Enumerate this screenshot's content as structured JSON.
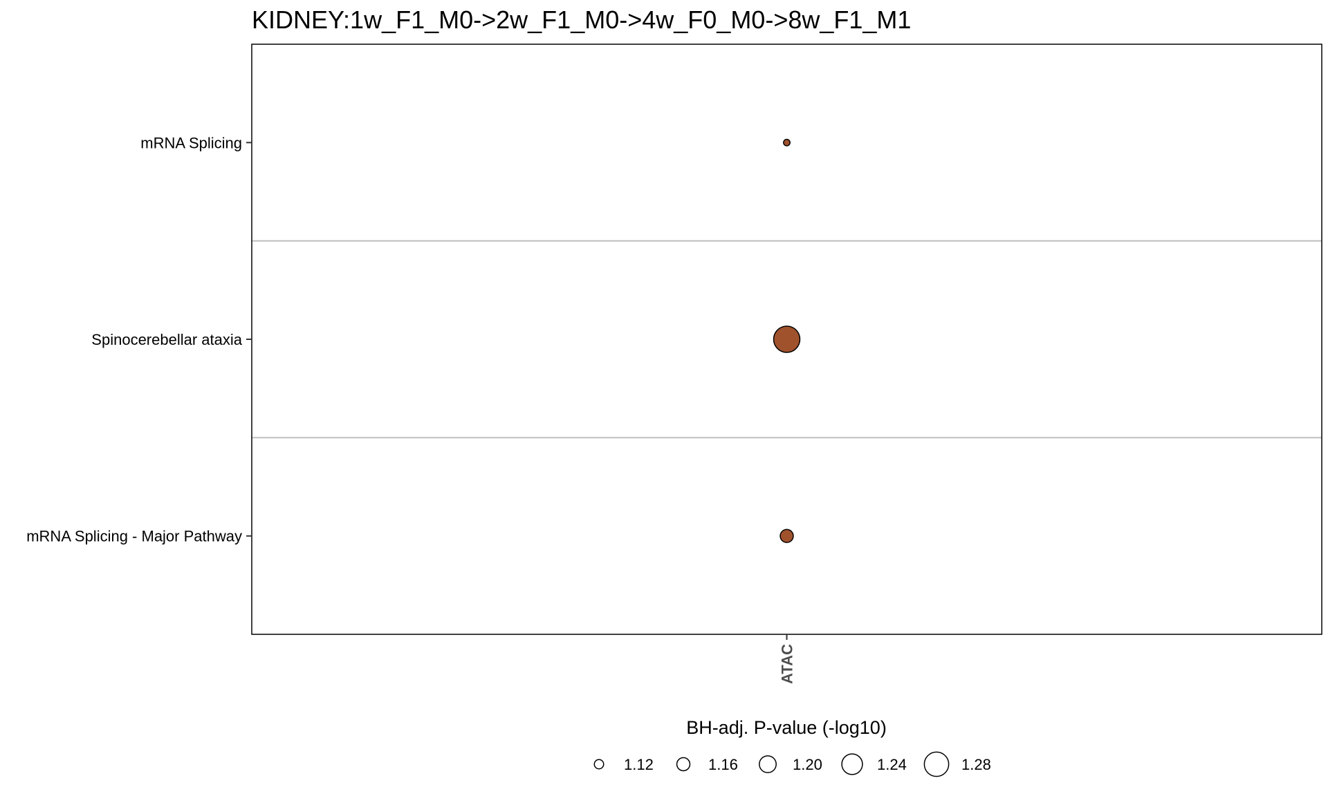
{
  "chart_data": {
    "type": "scatter",
    "title": "KIDNEY:1w_F1_M0->2w_F1_M0->4w_F0_M0->8w_F1_M1",
    "x_categories": [
      "ATAC"
    ],
    "y_categories": [
      "mRNA Splicing",
      "Spinocerebellar ataxia",
      "mRNA Splicing - Major Pathway"
    ],
    "points": [
      {
        "x": "ATAC",
        "y": "mRNA Splicing",
        "size_value": 1.09
      },
      {
        "x": "ATAC",
        "y": "Spinocerebellar ataxia",
        "size_value": 1.3
      },
      {
        "x": "ATAC",
        "y": "mRNA Splicing - Major Pathway",
        "size_value": 1.16
      }
    ],
    "point_color": "#A0522D",
    "size_legend": {
      "title": "BH-adj. P-value (-log10)",
      "breaks": [
        "1.12",
        "1.16",
        "1.20",
        "1.24",
        "1.28"
      ],
      "placement": "bottom"
    },
    "size_range": [
      1.08,
      1.3
    ]
  }
}
